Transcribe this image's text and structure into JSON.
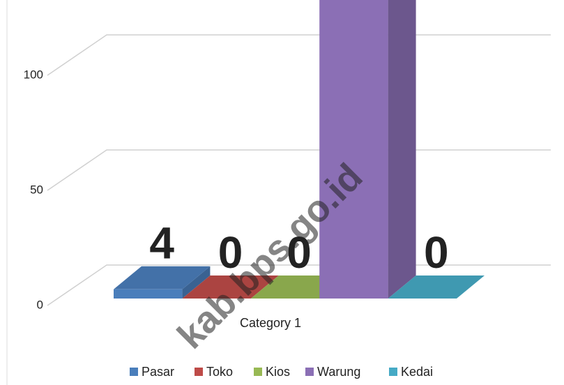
{
  "chart_data": {
    "type": "bar3d",
    "categories": [
      "Category 1"
    ],
    "series": [
      {
        "name": "Pasar",
        "color": "#4a7ebb",
        "values": [
          4
        ]
      },
      {
        "name": "Toko",
        "color": "#be4b48",
        "values": [
          0
        ]
      },
      {
        "name": "Kios",
        "color": "#98b954",
        "values": [
          0
        ]
      },
      {
        "name": "Warung",
        "color": "#8b6fb5",
        "values": [
          140
        ]
      },
      {
        "name": "Kedai",
        "color": "#46aac5",
        "values": [
          0
        ]
      }
    ],
    "ylim": [
      0,
      130
    ],
    "yticks": [
      0,
      50,
      100
    ],
    "grid": true,
    "legend": "bottom",
    "watermark": "kab.bps.go.id"
  }
}
